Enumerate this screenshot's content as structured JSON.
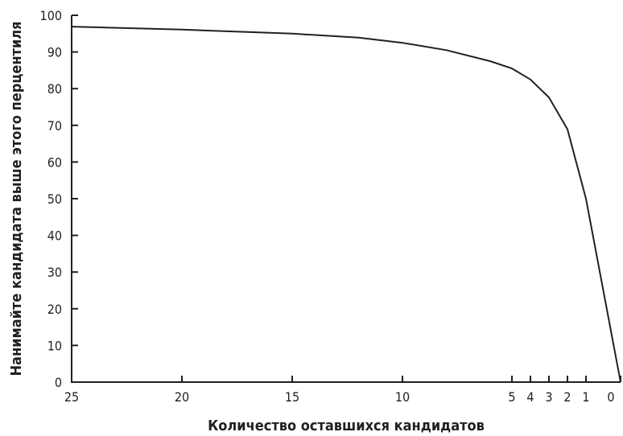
{
  "chart_data": {
    "type": "line",
    "title": "",
    "xlabel": "Количество оставшихся кандидатов",
    "ylabel": "Нанимайте кандидата выше этого перцентиля",
    "x_ticks": [
      "25",
      "20",
      "15",
      "10",
      "5",
      "4",
      "3",
      "2",
      "1",
      "0"
    ],
    "y_ticks": [
      "0",
      "10",
      "20",
      "30",
      "40",
      "50",
      "60",
      "70",
      "80",
      "90",
      "100"
    ],
    "ylim": [
      0,
      100
    ],
    "grid": false,
    "x": [
      25,
      20,
      15,
      12,
      10,
      8,
      6,
      5,
      4,
      3,
      2,
      1,
      0
    ],
    "y": [
      96.9,
      96.1,
      95.0,
      93.9,
      92.5,
      90.5,
      87.5,
      85.5,
      82.5,
      77.6,
      68.9,
      50.0,
      0
    ]
  }
}
